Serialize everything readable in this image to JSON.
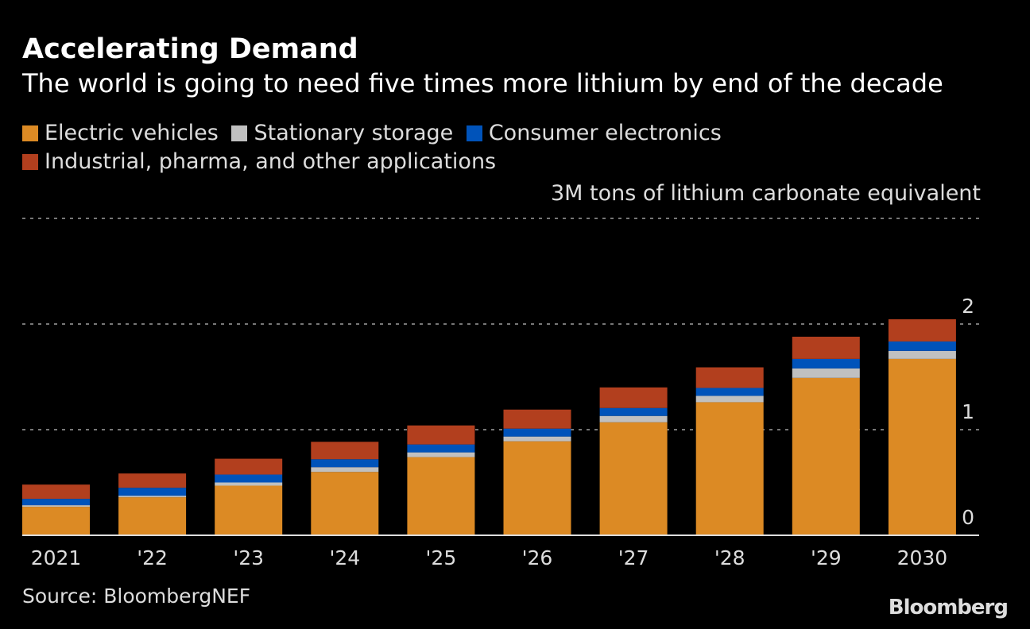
{
  "title": "Accelerating Demand",
  "subtitle": "The world is going to need five times more lithium by end of the decade",
  "source": "Source: BloombergNEF",
  "logo": "Bloomberg",
  "chart_data": {
    "type": "bar",
    "stacked": true,
    "categories": [
      "2021",
      "'22",
      "'23",
      "'24",
      "'25",
      "'26",
      "'27",
      "'28",
      "'29",
      "2030"
    ],
    "series": [
      {
        "name": "Electric vehicles",
        "color": "#dc8a24",
        "values": [
          0.27,
          0.36,
          0.47,
          0.6,
          0.74,
          0.89,
          1.07,
          1.26,
          1.49,
          1.67
        ]
      },
      {
        "name": "Stationary storage",
        "color": "#c0c0c0",
        "values": [
          0.015,
          0.015,
          0.03,
          0.045,
          0.045,
          0.045,
          0.06,
          0.06,
          0.09,
          0.075
        ]
      },
      {
        "name": "Consumer electronics",
        "color": "#0053ba",
        "values": [
          0.06,
          0.075,
          0.075,
          0.075,
          0.075,
          0.075,
          0.075,
          0.075,
          0.09,
          0.09
        ]
      },
      {
        "name": "Industrial, pharma, and other applications",
        "color": "#b23f1e",
        "values": [
          0.135,
          0.135,
          0.15,
          0.165,
          0.18,
          0.18,
          0.195,
          0.195,
          0.21,
          0.21
        ]
      }
    ],
    "yaxis_label": "3M tons of lithium carbonate equivalent",
    "yticks": [
      "0",
      "1",
      "2"
    ],
    "ylim": [
      0,
      3
    ],
    "grid": true,
    "legend": "top-left"
  }
}
